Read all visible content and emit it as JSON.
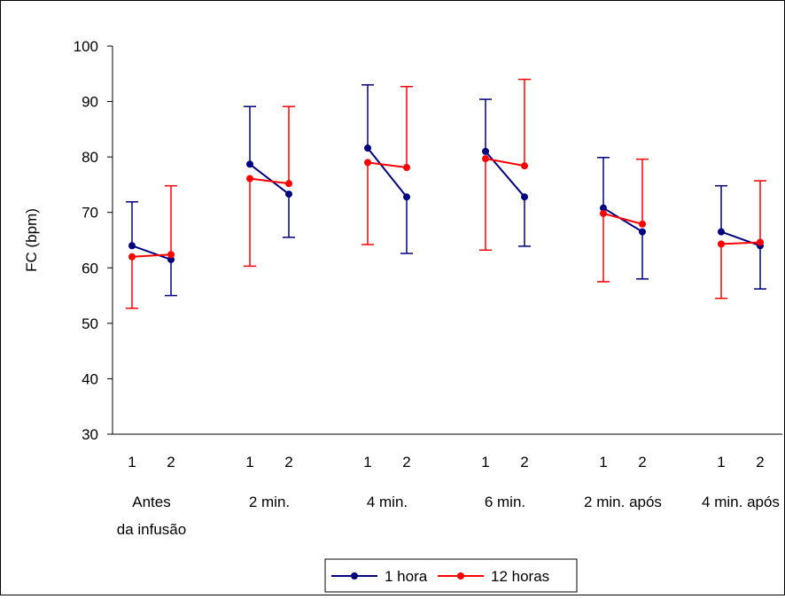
{
  "chart_data": {
    "type": "line",
    "title": "",
    "ylabel": "FC (bpm)",
    "xlabel": "",
    "ylim": [
      30,
      100
    ],
    "yticks": [
      30,
      40,
      50,
      60,
      70,
      80,
      90,
      100
    ],
    "grid": false,
    "legend_position": "bottom",
    "groups": [
      {
        "label_lines": [
          "Antes",
          "da infusão"
        ],
        "points": [
          "1",
          "2"
        ]
      },
      {
        "label_lines": [
          "2 min."
        ],
        "points": [
          "1",
          "2"
        ]
      },
      {
        "label_lines": [
          "4 min."
        ],
        "points": [
          "1",
          "2"
        ]
      },
      {
        "label_lines": [
          "6 min."
        ],
        "points": [
          "1",
          "2"
        ]
      },
      {
        "label_lines": [
          "2 min. após"
        ],
        "points": [
          "1",
          "2"
        ]
      },
      {
        "label_lines": [
          "4 min. após"
        ],
        "points": [
          "1",
          "2"
        ]
      }
    ],
    "series": [
      {
        "name": "1 hora",
        "color": "#000080",
        "values": [
          [
            64.0,
            61.5
          ],
          [
            78.7,
            73.3
          ],
          [
            81.6,
            72.8
          ],
          [
            81.0,
            72.8
          ],
          [
            70.8,
            66.5
          ],
          [
            66.5,
            64.0
          ]
        ],
        "error": [
          [
            [
              null,
              71.9
            ],
            [
              55.0,
              null
            ]
          ],
          [
            [
              null,
              89.1
            ],
            [
              65.5,
              null
            ]
          ],
          [
            [
              null,
              93.0
            ],
            [
              62.6,
              null
            ]
          ],
          [
            [
              null,
              90.4
            ],
            [
              63.9,
              null
            ]
          ],
          [
            [
              null,
              79.9
            ],
            [
              58.0,
              null
            ]
          ],
          [
            [
              null,
              74.8
            ],
            [
              56.2,
              null
            ]
          ]
        ]
      },
      {
        "name": "12 horas",
        "color": "#ff0000",
        "values": [
          [
            62.0,
            62.4
          ],
          [
            76.1,
            75.2
          ],
          [
            79.0,
            78.1
          ],
          [
            79.7,
            78.4
          ],
          [
            69.8,
            67.9
          ],
          [
            64.3,
            64.6
          ]
        ],
        "error": [
          [
            [
              52.7,
              null
            ],
            [
              null,
              74.8
            ]
          ],
          [
            [
              60.3,
              null
            ],
            [
              null,
              89.1
            ]
          ],
          [
            [
              64.2,
              null
            ],
            [
              null,
              92.7
            ]
          ],
          [
            [
              63.2,
              null
            ],
            [
              null,
              94.0
            ]
          ],
          [
            [
              57.5,
              null
            ],
            [
              null,
              79.6
            ]
          ],
          [
            [
              54.5,
              null
            ],
            [
              null,
              75.7
            ]
          ]
        ]
      }
    ]
  }
}
